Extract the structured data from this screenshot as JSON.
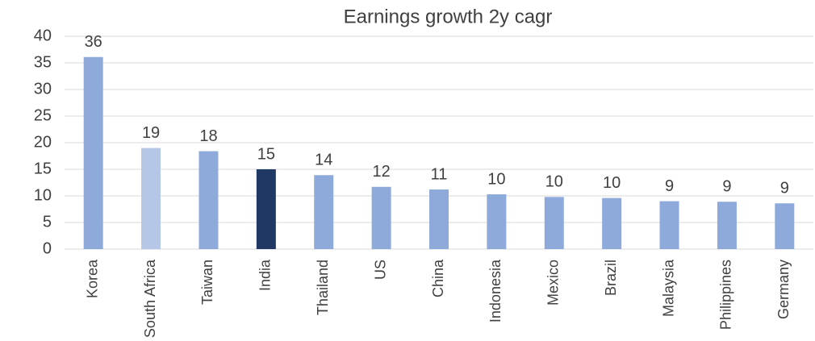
{
  "chart_data": {
    "type": "bar",
    "title": "Earnings growth 2y cagr",
    "categories": [
      "Korea",
      "South Africa",
      "Taiwan",
      "India",
      "Thailand",
      "US",
      "China",
      "Indonesia",
      "Mexico",
      "Brazil",
      "Malaysia",
      "Philippines",
      "Germany"
    ],
    "values": [
      36.1,
      19,
      18.4,
      15,
      13.9,
      11.7,
      11.2,
      10.3,
      9.8,
      9.6,
      9.0,
      8.9,
      8.6
    ],
    "value_labels": [
      "36",
      "19",
      "18",
      "15",
      "14",
      "12",
      "11",
      "10",
      "10",
      "10",
      "9",
      "9",
      "9"
    ],
    "colors": [
      "#8eaadb",
      "#b4c7e7",
      "#8eaadb",
      "#1f3864",
      "#8eaadb",
      "#8eaadb",
      "#8eaadb",
      "#8eaadb",
      "#8eaadb",
      "#8eaadb",
      "#8eaadb",
      "#8eaadb",
      "#8eaadb"
    ],
    "ylim": [
      0,
      40
    ],
    "yticks": [
      0,
      5,
      10,
      15,
      20,
      25,
      30,
      35,
      40
    ],
    "grid": true
  }
}
